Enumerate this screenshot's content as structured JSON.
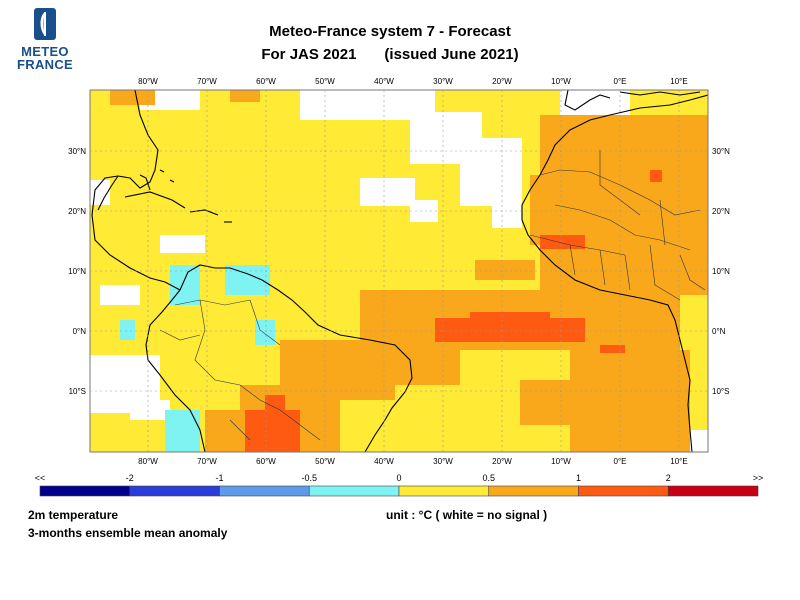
{
  "logo": {
    "line1": "METEO",
    "line2": "FRANCE"
  },
  "title": {
    "line1": "Meteo-France system 7  -  Forecast",
    "season": "For JAS 2021",
    "issued": "(issued June 2021)"
  },
  "lon_labels": [
    "80°W",
    "70°W",
    "60°W",
    "50°W",
    "40°W",
    "30°W",
    "20°W",
    "10°W",
    "0°E",
    "10°E"
  ],
  "lat_labels": [
    "30°N",
    "20°N",
    "10°N",
    "0°N",
    "10°S"
  ],
  "colorbar": {
    "colors": [
      "#00008b",
      "#2a3dd8",
      "#5d9ae8",
      "#7ff2f2",
      "#ffea35",
      "#f9a81c",
      "#ff5a12",
      "#c80014"
    ],
    "tick_labels": [
      "<<",
      "-2",
      "-1",
      "-0.5",
      "0",
      "0.5",
      "1",
      "2",
      ">>"
    ]
  },
  "footer": {
    "variable": "2m temperature",
    "description": "3-months ensemble mean anomaly",
    "unit": "unit : °C  ( white = no signal )"
  }
}
